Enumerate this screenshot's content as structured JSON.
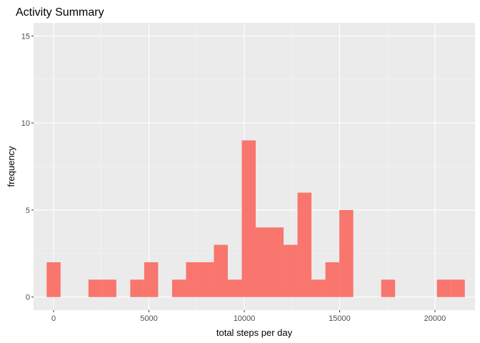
{
  "chart_data": {
    "type": "bar",
    "title": "Activity Summary",
    "xlabel": "total steps per day",
    "ylabel": "frequency",
    "xlim": [
      -1050,
      22100
    ],
    "ylim": [
      -0.75,
      15.75
    ],
    "x_ticks": [
      0,
      5000,
      10000,
      15000,
      20000
    ],
    "x_tick_labels": [
      "0",
      "5000",
      "10000",
      "15000",
      "20000"
    ],
    "y_ticks": [
      0,
      5,
      10,
      15
    ],
    "y_tick_labels": [
      "0",
      "5",
      "10",
      "15"
    ],
    "bin_width": 731,
    "bins": [
      {
        "start": -365,
        "count": 2
      },
      {
        "start": 366,
        "count": 0
      },
      {
        "start": 1097,
        "count": 0
      },
      {
        "start": 1828,
        "count": 1
      },
      {
        "start": 2559,
        "count": 1
      },
      {
        "start": 3290,
        "count": 0
      },
      {
        "start": 4021,
        "count": 1
      },
      {
        "start": 4752,
        "count": 2
      },
      {
        "start": 5483,
        "count": 0
      },
      {
        "start": 6214,
        "count": 1
      },
      {
        "start": 6945,
        "count": 2
      },
      {
        "start": 7676,
        "count": 2
      },
      {
        "start": 8407,
        "count": 3
      },
      {
        "start": 9138,
        "count": 1
      },
      {
        "start": 9869,
        "count": 9
      },
      {
        "start": 10600,
        "count": 4
      },
      {
        "start": 11331,
        "count": 4
      },
      {
        "start": 12062,
        "count": 3
      },
      {
        "start": 12793,
        "count": 6
      },
      {
        "start": 13524,
        "count": 1
      },
      {
        "start": 14255,
        "count": 2
      },
      {
        "start": 14986,
        "count": 5
      },
      {
        "start": 15717,
        "count": 0
      },
      {
        "start": 16448,
        "count": 0
      },
      {
        "start": 17179,
        "count": 1
      },
      {
        "start": 17910,
        "count": 0
      },
      {
        "start": 18641,
        "count": 0
      },
      {
        "start": 19372,
        "count": 0
      },
      {
        "start": 20103,
        "count": 1
      },
      {
        "start": 20834,
        "count": 1
      }
    ],
    "grid": true,
    "colors": {
      "panel": "#ebebeb",
      "grid_major": "#ffffff",
      "grid_minor": "#f5f5f5",
      "bar": "#f8766d",
      "tick_mark": "#333333"
    }
  }
}
